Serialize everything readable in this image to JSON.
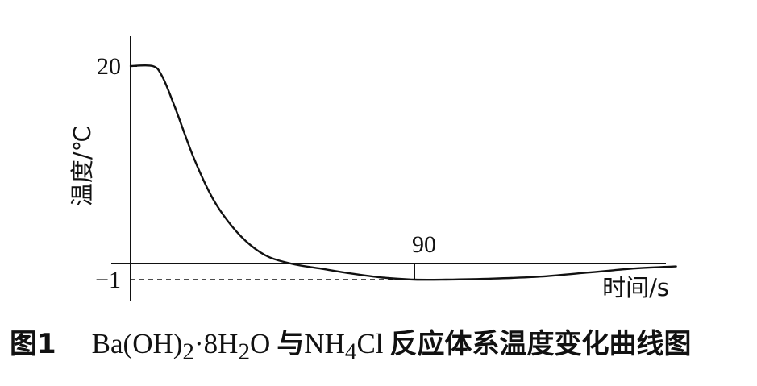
{
  "chart_data": {
    "type": "line",
    "xlabel": "时间/s",
    "ylabel": "温度/℃",
    "y_tick_labels": [
      "20",
      "−1"
    ],
    "annotations": [
      {
        "text": "90",
        "x": 90,
        "y": -1,
        "style": "dashed guide to y axis"
      }
    ],
    "xlim": [
      0,
      173
    ],
    "ylim": [
      -2,
      22
    ],
    "grid": false,
    "series": [
      {
        "x": [
          0,
          7,
          10,
          14,
          20,
          26,
          32,
          38,
          44,
          52,
          60,
          70,
          80,
          90,
          100,
          115,
          130,
          145,
          160,
          173
        ],
        "y": [
          20,
          20,
          19,
          16,
          11,
          7,
          4.3,
          2.4,
          1.2,
          0.5,
          0.1,
          -0.4,
          -0.8,
          -1.0,
          -1.0,
          -0.9,
          -0.7,
          -0.3,
          0.1,
          0.3
        ]
      }
    ]
  },
  "caption": {
    "figure_number": "图1",
    "formula_main": "Ba(OH)",
    "formula_sub1": "2",
    "formula_mid": "·8H",
    "formula_sub2": "2",
    "formula_o": "O",
    "conj": "与",
    "reagent_main": "NH",
    "reagent_sub": "4",
    "reagent_cl": "Cl",
    "description": "反应体系温度变化曲线图"
  }
}
